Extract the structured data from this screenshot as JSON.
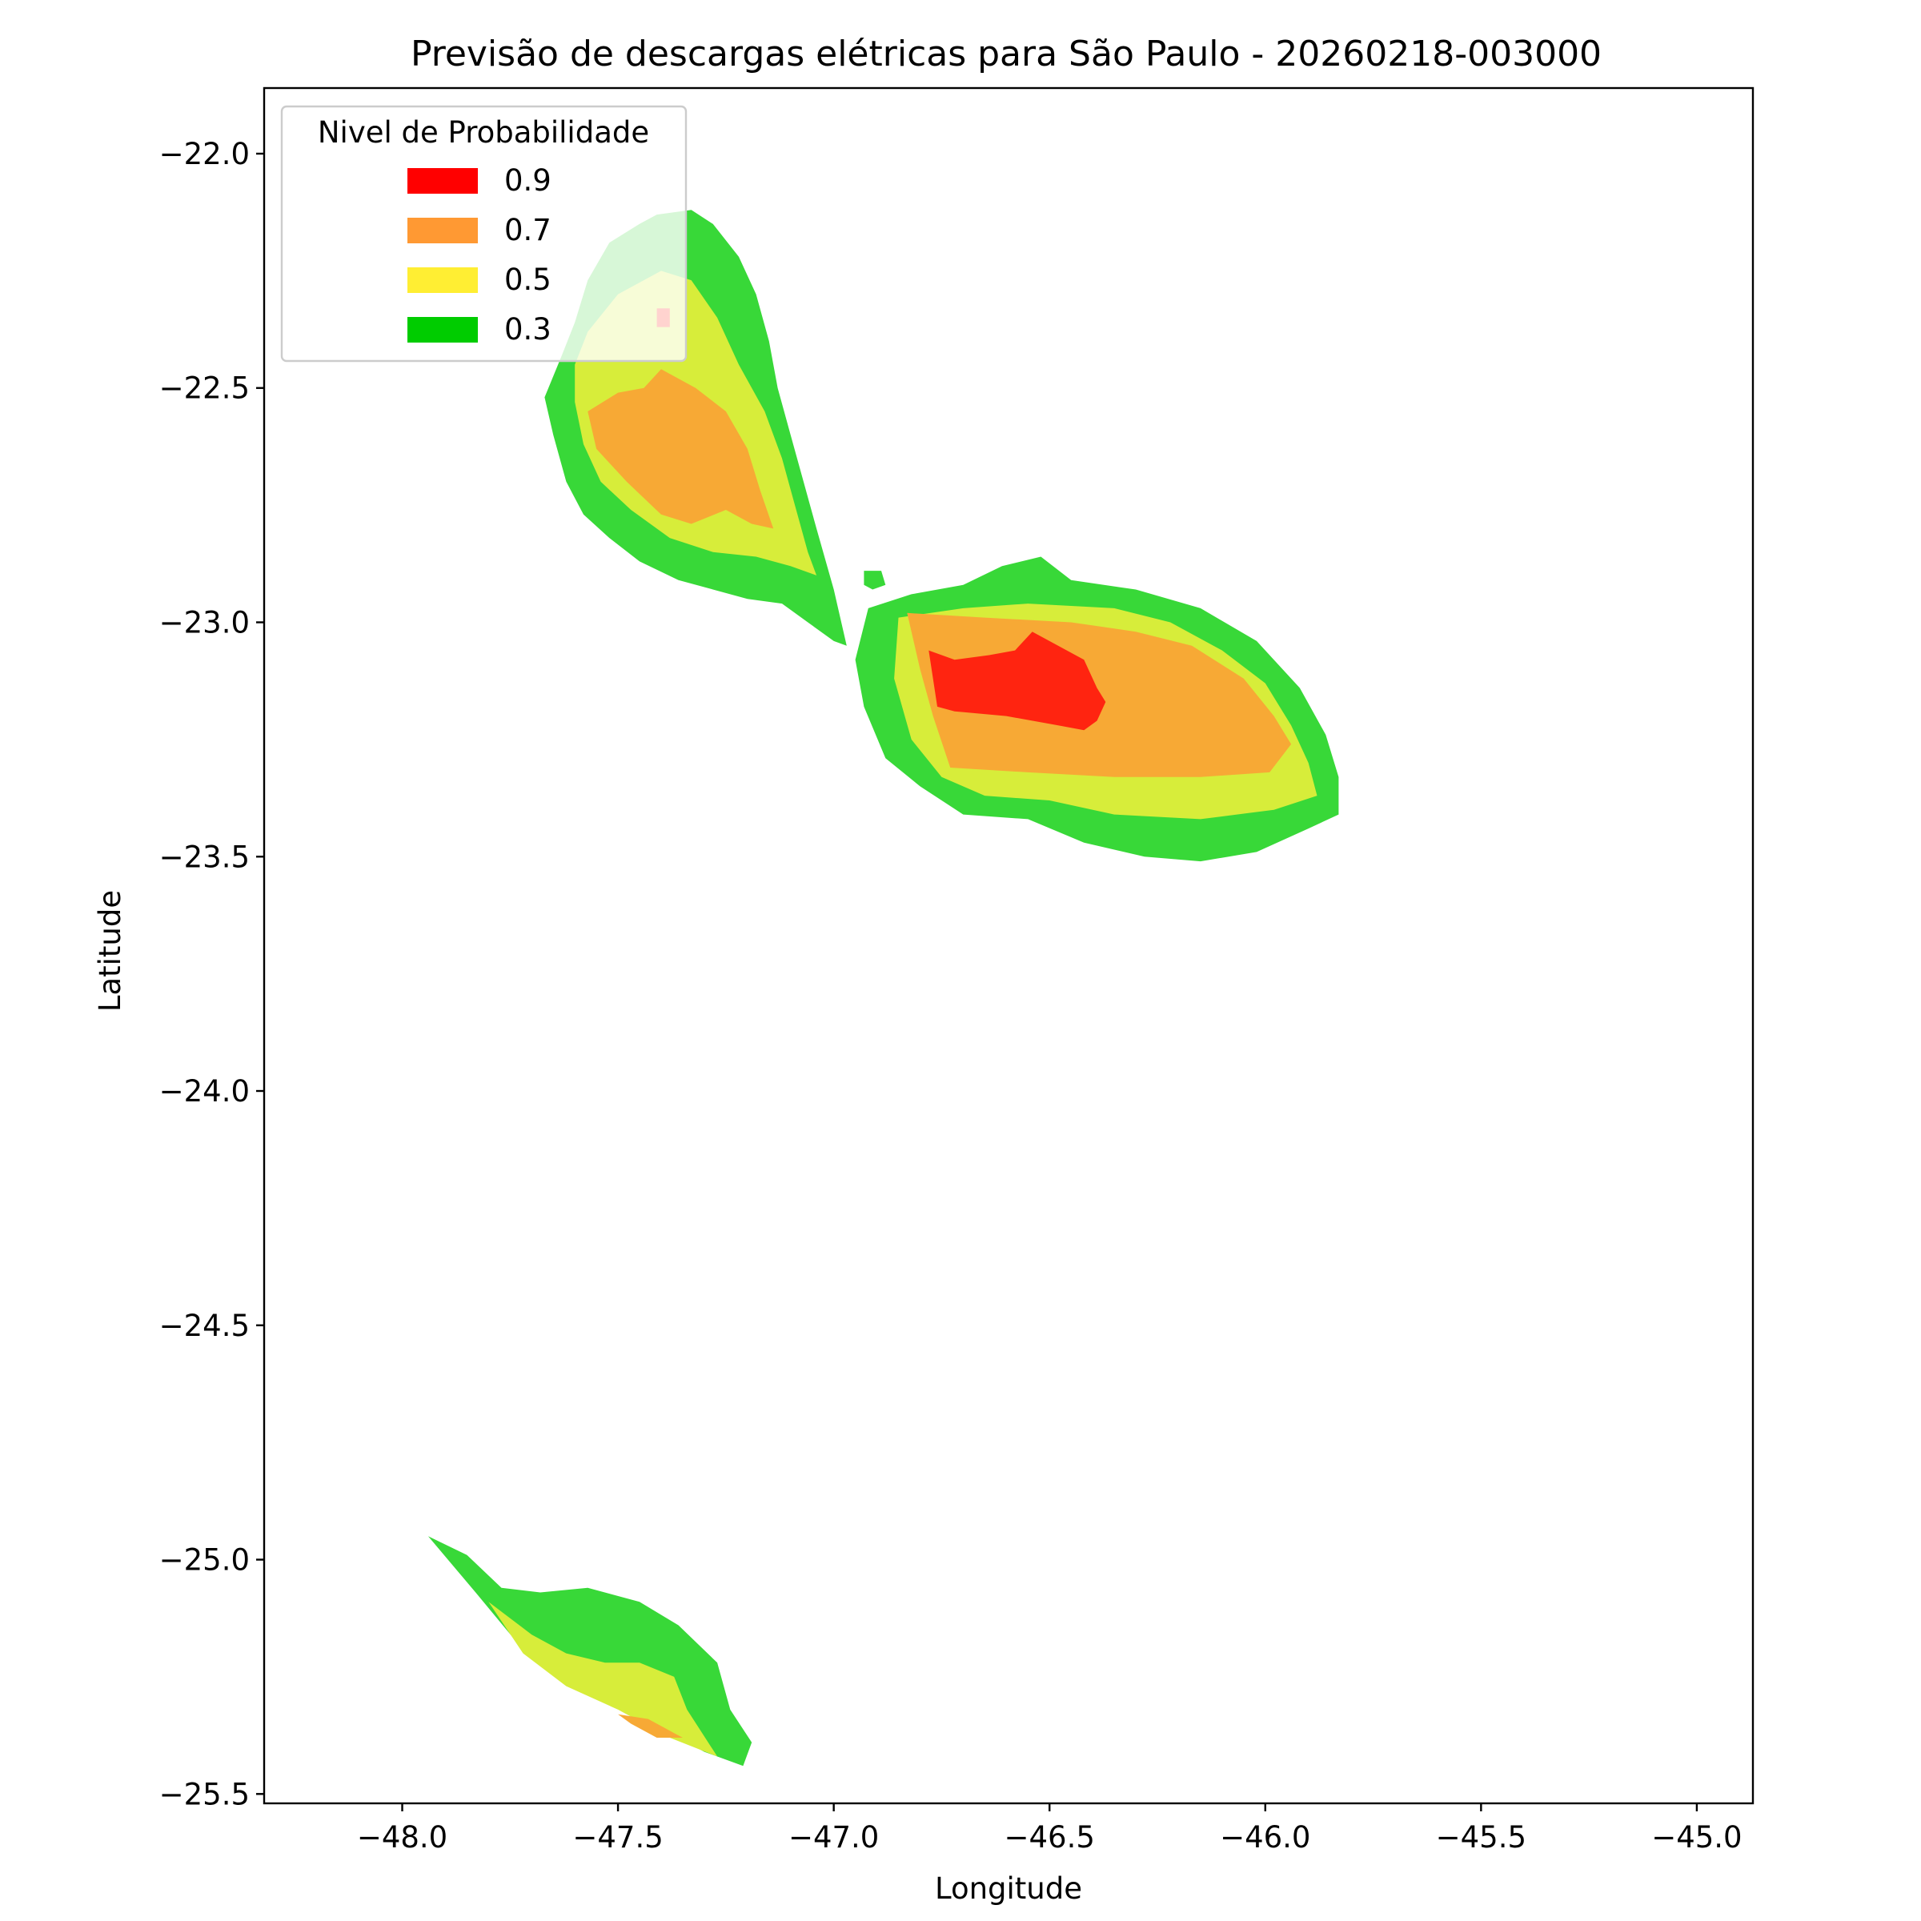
{
  "chart_data": {
    "type": "filled-contour",
    "title": "Previsão de descargas elétricas para São Paulo - 20260218-003000",
    "xlabel": "Longitude",
    "ylabel": "Latitude",
    "xlim": [
      -48.32,
      -44.87
    ],
    "ylim": [
      -25.52,
      -21.86
    ],
    "xticks": [
      -48.0,
      -47.5,
      -47.0,
      -46.5,
      -46.0,
      -45.5,
      -45.0
    ],
    "xtick_labels": [
      "−48.0",
      "−47.5",
      "−47.0",
      "−46.5",
      "−46.0",
      "−45.5",
      "−45.0"
    ],
    "yticks": [
      -22.0,
      -22.5,
      -23.0,
      -23.5,
      -24.0,
      -24.5,
      -25.0,
      -25.5
    ],
    "ytick_labels": [
      "−22.0",
      "−22.5",
      "−23.0",
      "−23.5",
      "−24.0",
      "−24.5",
      "−25.0",
      "−25.5"
    ],
    "grid": false,
    "legend": {
      "title": "Nivel de Probabilidade",
      "placement": "upper-left",
      "entries": [
        {
          "label": "0.9",
          "color": "#ff0000"
        },
        {
          "label": "0.7",
          "color": "#ff9933"
        },
        {
          "label": "0.5",
          "color": "#ffee33"
        },
        {
          "label": "0.3",
          "color": "#00cc00"
        }
      ]
    },
    "fill_colors": {
      "0.3": "#38d838",
      "0.5": "#d7ed3a",
      "0.7": "#f7a935",
      "0.9": "#ff2410"
    },
    "regions": [
      {
        "name": "north-cell",
        "levels": [
          {
            "level": "0.3",
            "points": [
              [
                -47.41,
                -22.13
              ],
              [
                -47.33,
                -22.12
              ],
              [
                -47.28,
                -22.15
              ],
              [
                -47.22,
                -22.22
              ],
              [
                -47.18,
                -22.3
              ],
              [
                -47.15,
                -22.4
              ],
              [
                -47.13,
                -22.5
              ],
              [
                -47.1,
                -22.6
              ],
              [
                -47.07,
                -22.7
              ],
              [
                -47.04,
                -22.8
              ],
              [
                -47.0,
                -22.93
              ],
              [
                -46.97,
                -23.05
              ],
              [
                -47.0,
                -23.04
              ],
              [
                -47.06,
                -23.0
              ],
              [
                -47.12,
                -22.96
              ],
              [
                -47.2,
                -22.95
              ],
              [
                -47.28,
                -22.93
              ],
              [
                -47.36,
                -22.91
              ],
              [
                -47.45,
                -22.87
              ],
              [
                -47.52,
                -22.82
              ],
              [
                -47.58,
                -22.77
              ],
              [
                -47.62,
                -22.7
              ],
              [
                -47.65,
                -22.6
              ],
              [
                -47.67,
                -22.52
              ],
              [
                -47.63,
                -22.43
              ],
              [
                -47.6,
                -22.36
              ],
              [
                -47.57,
                -22.27
              ],
              [
                -47.52,
                -22.19
              ],
              [
                -47.45,
                -22.15
              ]
            ]
          },
          {
            "level": "0.5",
            "points": [
              [
                -47.4,
                -22.25
              ],
              [
                -47.33,
                -22.27
              ],
              [
                -47.27,
                -22.35
              ],
              [
                -47.22,
                -22.45
              ],
              [
                -47.16,
                -22.55
              ],
              [
                -47.12,
                -22.65
              ],
              [
                -47.09,
                -22.75
              ],
              [
                -47.06,
                -22.85
              ],
              [
                -47.04,
                -22.9
              ],
              [
                -47.1,
                -22.88
              ],
              [
                -47.18,
                -22.86
              ],
              [
                -47.28,
                -22.85
              ],
              [
                -47.38,
                -22.82
              ],
              [
                -47.47,
                -22.76
              ],
              [
                -47.54,
                -22.7
              ],
              [
                -47.58,
                -22.62
              ],
              [
                -47.6,
                -22.53
              ],
              [
                -47.6,
                -22.45
              ],
              [
                -47.57,
                -22.38
              ],
              [
                -47.5,
                -22.3
              ]
            ]
          },
          {
            "level": "0.7",
            "points": [
              [
                -47.4,
                -22.46
              ],
              [
                -47.32,
                -22.5
              ],
              [
                -47.25,
                -22.55
              ],
              [
                -47.2,
                -22.63
              ],
              [
                -47.17,
                -22.72
              ],
              [
                -47.14,
                -22.8
              ],
              [
                -47.19,
                -22.79
              ],
              [
                -47.25,
                -22.76
              ],
              [
                -47.33,
                -22.79
              ],
              [
                -47.4,
                -22.77
              ],
              [
                -47.48,
                -22.7
              ],
              [
                -47.55,
                -22.63
              ],
              [
                -47.57,
                -22.55
              ],
              [
                -47.5,
                -22.51
              ],
              [
                -47.44,
                -22.5
              ]
            ]
          },
          {
            "level": "0.9",
            "points": [
              [
                -47.41,
                -22.33
              ],
              [
                -47.38,
                -22.33
              ],
              [
                -47.38,
                -22.37
              ],
              [
                -47.41,
                -22.37
              ]
            ]
          }
        ]
      },
      {
        "name": "isolated-point",
        "levels": [
          {
            "level": "0.3",
            "points": [
              [
                -46.93,
                -22.89
              ],
              [
                -46.89,
                -22.89
              ],
              [
                -46.88,
                -22.92
              ],
              [
                -46.91,
                -22.93
              ],
              [
                -46.93,
                -22.92
              ]
            ]
          }
        ]
      },
      {
        "name": "central-cell",
        "levels": [
          {
            "level": "0.3",
            "points": [
              [
                -46.92,
                -22.97
              ],
              [
                -46.82,
                -22.94
              ],
              [
                -46.7,
                -22.92
              ],
              [
                -46.61,
                -22.88
              ],
              [
                -46.52,
                -22.86
              ],
              [
                -46.45,
                -22.91
              ],
              [
                -46.3,
                -22.93
              ],
              [
                -46.15,
                -22.97
              ],
              [
                -46.02,
                -23.04
              ],
              [
                -45.92,
                -23.14
              ],
              [
                -45.86,
                -23.24
              ],
              [
                -45.83,
                -23.33
              ],
              [
                -45.83,
                -23.41
              ],
              [
                -45.9,
                -23.44
              ],
              [
                -46.02,
                -23.49
              ],
              [
                -46.15,
                -23.51
              ],
              [
                -46.28,
                -23.5
              ],
              [
                -46.42,
                -23.47
              ],
              [
                -46.55,
                -23.42
              ],
              [
                -46.7,
                -23.41
              ],
              [
                -46.8,
                -23.35
              ],
              [
                -46.88,
                -23.29
              ],
              [
                -46.93,
                -23.18
              ],
              [
                -46.95,
                -23.08
              ]
            ]
          },
          {
            "level": "0.5",
            "points": [
              [
                -46.85,
                -22.99
              ],
              [
                -46.7,
                -22.97
              ],
              [
                -46.55,
                -22.96
              ],
              [
                -46.35,
                -22.97
              ],
              [
                -46.22,
                -23.0
              ],
              [
                -46.1,
                -23.06
              ],
              [
                -46.0,
                -23.13
              ],
              [
                -45.94,
                -23.22
              ],
              [
                -45.9,
                -23.3
              ],
              [
                -45.88,
                -23.37
              ],
              [
                -45.98,
                -23.4
              ],
              [
                -46.15,
                -23.42
              ],
              [
                -46.35,
                -23.41
              ],
              [
                -46.5,
                -23.38
              ],
              [
                -46.65,
                -23.37
              ],
              [
                -46.75,
                -23.33
              ],
              [
                -46.82,
                -23.25
              ],
              [
                -46.86,
                -23.12
              ]
            ]
          },
          {
            "level": "0.7",
            "points": [
              [
                -46.83,
                -22.98
              ],
              [
                -46.65,
                -22.99
              ],
              [
                -46.45,
                -23.0
              ],
              [
                -46.3,
                -23.02
              ],
              [
                -46.17,
                -23.05
              ],
              [
                -46.05,
                -23.12
              ],
              [
                -45.98,
                -23.2
              ],
              [
                -45.94,
                -23.26
              ],
              [
                -45.99,
                -23.32
              ],
              [
                -46.15,
                -23.33
              ],
              [
                -46.35,
                -23.33
              ],
              [
                -46.55,
                -23.32
              ],
              [
                -46.73,
                -23.31
              ],
              [
                -46.77,
                -23.2
              ],
              [
                -46.8,
                -23.1
              ]
            ]
          },
          {
            "level": "0.9",
            "points": [
              [
                -46.78,
                -23.06
              ],
              [
                -46.72,
                -23.08
              ],
              [
                -46.64,
                -23.07
              ],
              [
                -46.58,
                -23.06
              ],
              [
                -46.54,
                -23.02
              ],
              [
                -46.48,
                -23.05
              ],
              [
                -46.42,
                -23.08
              ],
              [
                -46.39,
                -23.14
              ],
              [
                -46.37,
                -23.17
              ],
              [
                -46.39,
                -23.21
              ],
              [
                -46.42,
                -23.23
              ],
              [
                -46.48,
                -23.22
              ],
              [
                -46.6,
                -23.2
              ],
              [
                -46.72,
                -23.19
              ],
              [
                -46.76,
                -23.18
              ]
            ]
          }
        ]
      },
      {
        "name": "south-cell",
        "levels": [
          {
            "level": "0.3",
            "points": [
              [
                -47.94,
                -24.95
              ],
              [
                -47.85,
                -24.99
              ],
              [
                -47.77,
                -25.06
              ],
              [
                -47.68,
                -25.07
              ],
              [
                -47.57,
                -25.06
              ],
              [
                -47.45,
                -25.09
              ],
              [
                -47.36,
                -25.14
              ],
              [
                -47.27,
                -25.22
              ],
              [
                -47.24,
                -25.32
              ],
              [
                -47.19,
                -25.39
              ],
              [
                -47.21,
                -25.44
              ],
              [
                -47.3,
                -25.41
              ],
              [
                -47.4,
                -25.36
              ],
              [
                -47.52,
                -25.3
              ],
              [
                -47.64,
                -25.24
              ],
              [
                -47.74,
                -25.17
              ],
              [
                -47.83,
                -25.07
              ]
            ]
          },
          {
            "level": "0.5",
            "points": [
              [
                -47.8,
                -25.09
              ],
              [
                -47.7,
                -25.16
              ],
              [
                -47.62,
                -25.2
              ],
              [
                -47.53,
                -25.22
              ],
              [
                -47.45,
                -25.22
              ],
              [
                -47.37,
                -25.25
              ],
              [
                -47.34,
                -25.32
              ],
              [
                -47.27,
                -25.42
              ],
              [
                -47.38,
                -25.38
              ],
              [
                -47.5,
                -25.32
              ],
              [
                -47.62,
                -25.27
              ],
              [
                -47.72,
                -25.2
              ]
            ]
          },
          {
            "level": "0.7",
            "points": [
              [
                -47.5,
                -25.33
              ],
              [
                -47.43,
                -25.34
              ],
              [
                -47.37,
                -25.37
              ],
              [
                -47.35,
                -25.38
              ],
              [
                -47.41,
                -25.38
              ],
              [
                -47.47,
                -25.35
              ]
            ]
          }
        ]
      }
    ]
  }
}
